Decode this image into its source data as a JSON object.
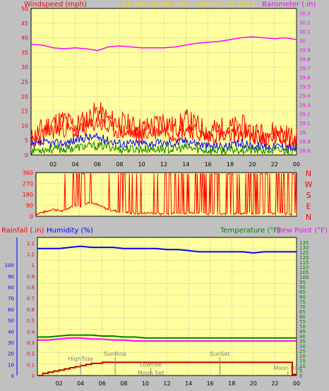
{
  "title": "24 hour graph date - January 18 2017",
  "colors": {
    "bg": "#c0c0c0",
    "plot": "#ffffa0",
    "grid": "#909090",
    "wind": "#ff0000",
    "gust": "#ff0000",
    "avg": "#0000ff",
    "low": "#008000",
    "baro": "#ff00ff",
    "temp": "#008000",
    "dew": "#ff00ff",
    "hum": "#0000ff",
    "rain": "#c00000",
    "text_red": "#ff0000",
    "text_blue": "#0000ff",
    "text_green": "#008000",
    "text_mag": "#ff00ff",
    "title": "#ffd800"
  },
  "chart_data": [
    {
      "type": "line",
      "name": "wind-baro",
      "title": "24 hour graph date - January 18 2017",
      "ylabel_left": "Windspeed (mph)",
      "ylabel_right": "Barometer (.in)",
      "xticks": [
        "02",
        "04",
        "06",
        "08",
        "10",
        "12",
        "14",
        "16",
        "18",
        "20",
        "22",
        "00"
      ],
      "yticks_left": [
        "0",
        "5",
        "10",
        "15",
        "20",
        "25",
        "30",
        "35",
        "40",
        "45",
        "50"
      ],
      "yticks_right": [
        "28.8",
        "28.9",
        "29",
        "29.1",
        "29.2",
        "29.3",
        "29.4",
        "29.5",
        "29.6",
        "29.7",
        "29.8",
        "29.9",
        "30",
        "30.1",
        "30.2",
        "30.3"
      ],
      "ylim_left": [
        0,
        50
      ],
      "ylim_right": [
        28.75,
        30.35
      ],
      "xlim": [
        0,
        24
      ],
      "series": [
        {
          "key": "baro",
          "axis": "right",
          "x": [
            0,
            1,
            2,
            3,
            4,
            5,
            6,
            7,
            8,
            9,
            10,
            11,
            12,
            13,
            14,
            15,
            16,
            17,
            18,
            19,
            20,
            21,
            22,
            23,
            24
          ],
          "values": [
            29.96,
            29.95,
            29.92,
            29.91,
            29.92,
            29.91,
            29.89,
            29.93,
            29.94,
            29.93,
            29.92,
            29.92,
            29.92,
            29.93,
            29.95,
            29.97,
            29.98,
            29.99,
            30.01,
            30.03,
            30.04,
            30.03,
            30.02,
            30.03,
            30.01
          ]
        },
        {
          "key": "gust",
          "axis": "left",
          "x": [
            0,
            1,
            2,
            3,
            4,
            5,
            6,
            7,
            8,
            9,
            10,
            11,
            12,
            13,
            14,
            15,
            16,
            17,
            18,
            19,
            20,
            21,
            22,
            23,
            24
          ],
          "values": [
            5,
            9,
            11,
            12,
            10,
            12,
            15,
            12,
            11,
            10,
            9,
            10,
            12,
            9,
            12,
            10,
            8,
            9,
            9,
            10,
            8,
            7,
            8,
            7,
            5
          ]
        },
        {
          "key": "avg",
          "axis": "left",
          "x": [
            0,
            1,
            2,
            3,
            4,
            5,
            6,
            7,
            8,
            9,
            10,
            11,
            12,
            13,
            14,
            15,
            16,
            17,
            18,
            19,
            20,
            21,
            22,
            23,
            24
          ],
          "values": [
            3,
            4,
            4,
            4,
            5,
            6,
            6,
            5,
            4,
            4,
            4,
            4,
            4,
            4,
            5,
            4,
            3,
            3,
            3,
            4,
            3,
            3,
            3,
            3,
            2
          ]
        },
        {
          "key": "low",
          "axis": "left",
          "x": [
            0,
            1,
            2,
            3,
            4,
            5,
            6,
            7,
            8,
            9,
            10,
            11,
            12,
            13,
            14,
            15,
            16,
            17,
            18,
            19,
            20,
            21,
            22,
            23,
            24
          ],
          "values": [
            1.5,
            2,
            2,
            2,
            2.5,
            3,
            3,
            3,
            2,
            2,
            2,
            2,
            2,
            2,
            2.5,
            2,
            1.5,
            1.5,
            1.5,
            2,
            1.5,
            1.5,
            1.5,
            1.5,
            1
          ]
        }
      ]
    },
    {
      "type": "line",
      "name": "wind-direction",
      "ylabel_right": [
        "N",
        "W",
        "S",
        "E",
        "N"
      ],
      "yticks_left": [
        "0",
        "90",
        "180",
        "270",
        "360"
      ],
      "ylim": [
        0,
        360
      ],
      "xlim": [
        0,
        24
      ],
      "series": [
        {
          "key": "dir",
          "x": [
            0,
            0.5,
            1,
            1.5,
            2,
            2.5,
            3,
            3.5,
            4,
            4.5,
            5,
            5.5,
            6,
            6.5,
            7,
            7.5,
            8,
            8.5,
            9,
            9.5,
            10,
            10.5,
            11,
            11.5,
            12,
            12.5,
            13,
            13.5,
            14,
            14.5,
            15,
            15.5,
            16,
            16.5,
            17,
            17.5,
            18,
            18.5,
            19,
            19.5,
            20,
            20.5,
            21,
            21.5,
            22,
            22.5,
            23,
            23.5,
            24
          ],
          "values": [
            20,
            30,
            40,
            60,
            50,
            40,
            70,
            90,
            80,
            100,
            120,
            100,
            80,
            60,
            50,
            40,
            35,
            30,
            25,
            20,
            25,
            30,
            25,
            20,
            20,
            25,
            30,
            30,
            25,
            30,
            30,
            25,
            20,
            20,
            15,
            20,
            20,
            25,
            20,
            25,
            20,
            20,
            25,
            30,
            20,
            25,
            20,
            15,
            20
          ]
        }
      ]
    },
    {
      "type": "line",
      "name": "temp-hum-rain",
      "ylabel_left_red": "Rainfall (.in)",
      "ylabel_left_blue": "Humidity (%)",
      "ylabel_right_green": "Temperature (°F)",
      "ylabel_right_mag": "Dew Point (°F)",
      "xticks": [
        "02",
        "04",
        "06",
        "08",
        "10",
        "12",
        "14",
        "16",
        "18",
        "20",
        "22",
        "00"
      ],
      "yticks_left": [
        "0",
        "10",
        "20",
        "30",
        "40",
        "50",
        "60",
        "70",
        "80",
        "90",
        "100"
      ],
      "yticks_mid": [
        "0",
        "0.1",
        "0.2",
        "0.3",
        "0.4",
        "0.5",
        "0.6",
        "0.7",
        "0.8",
        "0.9",
        "1",
        "1.1",
        "1.2"
      ],
      "yticks_right": [
        "0",
        "5",
        "10",
        "15",
        "20",
        "25",
        "30",
        "35",
        "40",
        "45",
        "50",
        "55",
        "60",
        "65",
        "70",
        "75",
        "80",
        "85",
        "90",
        "95",
        "100",
        "105",
        "110",
        "115",
        "120",
        "125",
        "130",
        "135"
      ],
      "ylim_left": [
        0,
        1.25
      ],
      "ylim_right": [
        0,
        140
      ],
      "xlim": [
        0,
        24
      ],
      "annotations": [
        {
          "text": "HighTide",
          "x": 4.0
        },
        {
          "text": "SunRise",
          "x": 7.2
        },
        {
          "text": "Lowtide",
          "x": 10.5
        },
        {
          "text": "Moon Set",
          "x": 10.5
        },
        {
          "text": "SunSet",
          "x": 16.9
        },
        {
          "text": "Moon Rise",
          "x": 23.2
        }
      ],
      "series": [
        {
          "key": "hum",
          "axis": "left",
          "x": [
            0,
            1,
            2,
            3,
            4,
            5,
            6,
            7,
            8,
            9,
            10,
            11,
            12,
            13,
            14,
            15,
            16,
            17,
            18,
            19,
            20,
            21,
            22,
            23,
            24
          ],
          "values": [
            1.15,
            1.15,
            1.15,
            1.16,
            1.17,
            1.16,
            1.16,
            1.16,
            1.15,
            1.15,
            1.15,
            1.15,
            1.14,
            1.14,
            1.13,
            1.12,
            1.12,
            1.12,
            1.12,
            1.12,
            1.11,
            1.12,
            1.12,
            1.12,
            1.12
          ]
        },
        {
          "key": "temp",
          "axis": "right",
          "x": [
            0,
            1,
            2,
            3,
            4,
            5,
            6,
            7,
            8,
            9,
            10,
            11,
            12,
            13,
            14,
            15,
            16,
            17,
            18,
            19,
            20,
            21,
            22,
            23,
            24
          ],
          "values": [
            39,
            39,
            40,
            41,
            41,
            41,
            40,
            40,
            39,
            39,
            38,
            38,
            38,
            38,
            38,
            38,
            38,
            38,
            38,
            38,
            38,
            38,
            38,
            38,
            38
          ]
        },
        {
          "key": "dew",
          "axis": "right",
          "x": [
            0,
            1,
            2,
            3,
            4,
            5,
            6,
            7,
            8,
            9,
            10,
            11,
            12,
            13,
            14,
            15,
            16,
            17,
            18,
            19,
            20,
            21,
            22,
            23,
            24
          ],
          "values": [
            36,
            36,
            37,
            38,
            38,
            37,
            37,
            36,
            36,
            35,
            35,
            35,
            35,
            35,
            35,
            35,
            35,
            35,
            35,
            35,
            35,
            35,
            35,
            35,
            35
          ]
        },
        {
          "key": "rain",
          "axis": "left",
          "x": [
            0,
            0.5,
            1,
            1.5,
            2,
            2.5,
            3,
            3.5,
            4,
            4.5,
            5,
            5.5,
            6,
            7,
            8,
            9,
            10,
            11,
            12,
            14,
            16,
            18,
            20,
            22,
            23.5,
            23.6,
            24
          ],
          "values": [
            0,
            0.02,
            0.03,
            0.04,
            0.05,
            0.06,
            0.07,
            0.08,
            0.09,
            0.1,
            0.11,
            0.11,
            0.12,
            0.12,
            0.12,
            0.12,
            0.12,
            0.12,
            0.12,
            0.12,
            0.12,
            0.12,
            0.12,
            0.12,
            0.12,
            0.01,
            0.01
          ]
        }
      ]
    }
  ]
}
